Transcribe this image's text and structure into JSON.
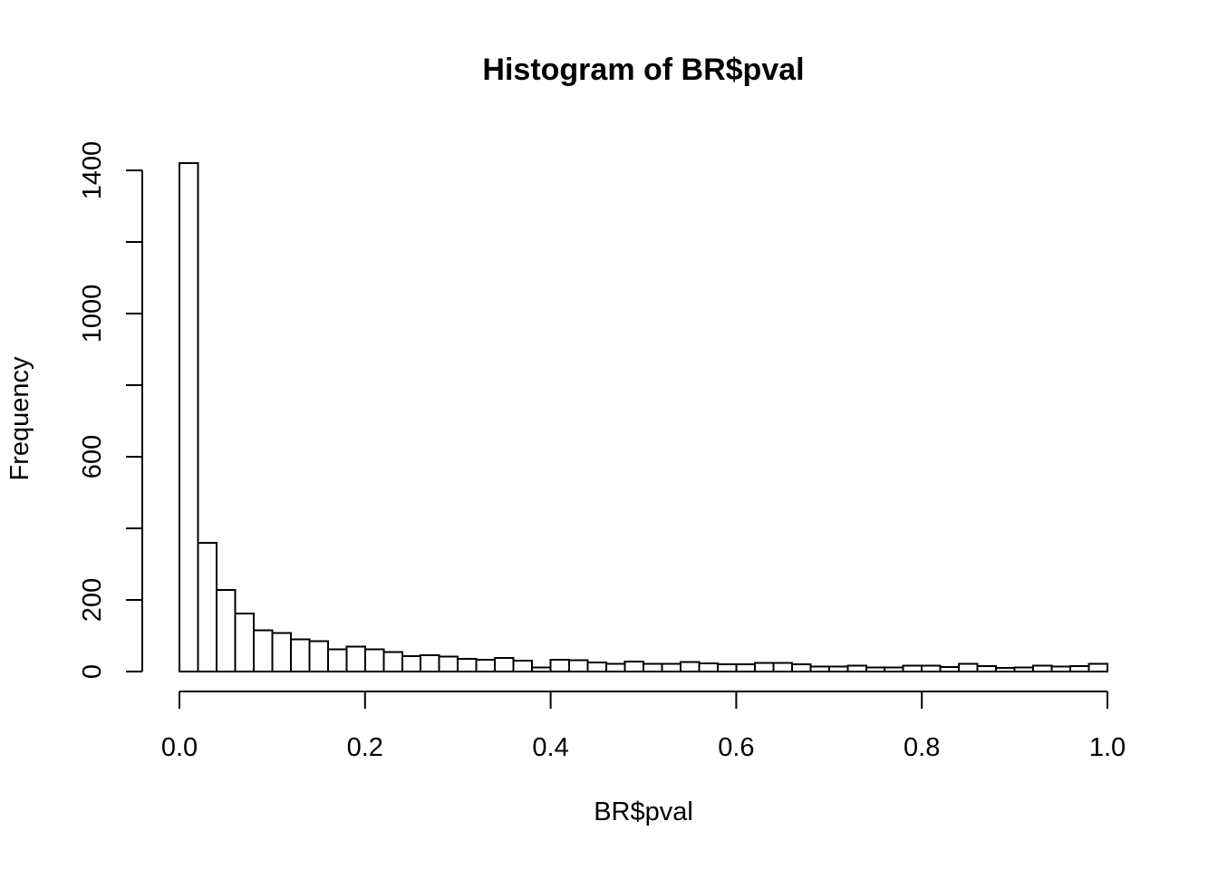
{
  "chart_data": {
    "type": "bar",
    "title": "Histogram of BR$pval",
    "xlabel": "BR$pval",
    "ylabel": "Frequency",
    "xlim": [
      0,
      1
    ],
    "ylim": [
      0,
      1400
    ],
    "x_ticks": [
      "0.0",
      "0.2",
      "0.4",
      "0.6",
      "0.8",
      "1.0"
    ],
    "x_tick_values": [
      0,
      0.2,
      0.4,
      0.6,
      0.8,
      1.0
    ],
    "y_ticks": [
      "0",
      "200",
      "600",
      "1000",
      "1400"
    ],
    "y_tick_values": [
      0,
      200,
      400,
      600,
      800,
      1000,
      1200,
      1400
    ],
    "bin_width": 0.02,
    "bin_start": 0,
    "values": [
      1420,
      360,
      228,
      162,
      115,
      107,
      90,
      85,
      62,
      70,
      62,
      55,
      43,
      45,
      42,
      35,
      33,
      38,
      30,
      12,
      33,
      32,
      25,
      21,
      28,
      22,
      22,
      27,
      23,
      20,
      20,
      24,
      24,
      20,
      14,
      14,
      17,
      12,
      11,
      16,
      17,
      13,
      21,
      15,
      10,
      12,
      17,
      14,
      15,
      22
    ],
    "grid": false,
    "bar_fill": "#ffffff",
    "bar_stroke": "#000000"
  }
}
